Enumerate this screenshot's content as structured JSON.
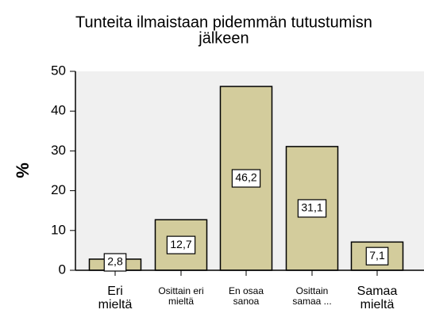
{
  "chart_data": {
    "type": "bar",
    "title": [
      "Tunteita ilmaistaan pidemmän tutustumisn",
      "jälkeen"
    ],
    "y_label": "%",
    "categories": [
      [
        "Eri",
        "mieltä"
      ],
      [
        "Osittain eri",
        "mieltä"
      ],
      [
        "En osaa",
        "sanoa"
      ],
      [
        "Osittain",
        "samaa ..."
      ],
      [
        "Samaa",
        "mieltä"
      ]
    ],
    "values": [
      2.8,
      12.7,
      46.2,
      31.1,
      7.1
    ],
    "value_labels": [
      "2,8",
      "12,7",
      "46,2",
      "31,1",
      "7,1"
    ],
    "color": "#d3cc9c",
    "ylim": [
      0,
      50
    ],
    "yticks": [
      0,
      10,
      20,
      30,
      40,
      50
    ]
  }
}
